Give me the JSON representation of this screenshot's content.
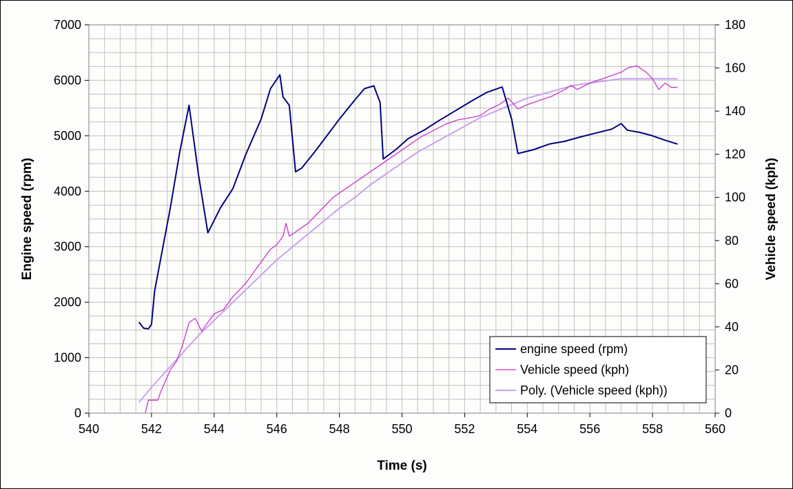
{
  "chart_data": {
    "type": "line",
    "xlabel": "Time (s)",
    "ylabel_left": "Engine speed (rpm)",
    "ylabel_right": "Vehicle speed (kph)",
    "xlim": [
      540,
      560
    ],
    "ylim_left": [
      0,
      7000
    ],
    "ylim_right": [
      0,
      180
    ],
    "x_ticks": [
      "540",
      "542",
      "544",
      "546",
      "548",
      "550",
      "552",
      "554",
      "556",
      "558",
      "560"
    ],
    "y_left_ticks": [
      "0",
      "1000",
      "2000",
      "3000",
      "4000",
      "5000",
      "6000",
      "7000"
    ],
    "y_right_ticks": [
      "0",
      "20",
      "40",
      "60",
      "80",
      "100",
      "120",
      "140",
      "160",
      "180"
    ],
    "grid": true,
    "legend_position": "bottom-right",
    "colors": {
      "engine": "#000080",
      "vehicle": "#cc33cc",
      "poly": "#c9a0f0"
    },
    "series": [
      {
        "name": "engine speed (rpm)",
        "axis": "left",
        "x": [
          541.6,
          541.75,
          541.9,
          542.0,
          542.1,
          542.3,
          542.6,
          542.9,
          543.2,
          543.5,
          543.8,
          544.2,
          544.6,
          545.0,
          545.5,
          545.8,
          546.1,
          546.2,
          546.4,
          546.6,
          546.8,
          547.2,
          547.6,
          548.0,
          548.5,
          548.8,
          549.1,
          549.3,
          549.4,
          549.8,
          550.2,
          550.7,
          551.2,
          551.7,
          552.2,
          552.7,
          553.2,
          553.5,
          553.7,
          554.2,
          554.7,
          555.2,
          555.7,
          556.2,
          556.7,
          557.0,
          557.2,
          557.6,
          558.0,
          558.4,
          558.8
        ],
        "values": [
          1640,
          1530,
          1520,
          1600,
          2200,
          2800,
          3700,
          4700,
          5550,
          4300,
          3250,
          3700,
          4050,
          4650,
          5300,
          5850,
          6100,
          5700,
          5550,
          4350,
          4420,
          4700,
          5000,
          5300,
          5650,
          5850,
          5900,
          5600,
          4580,
          4750,
          4950,
          5100,
          5280,
          5450,
          5620,
          5780,
          5880,
          5300,
          4680,
          4750,
          4850,
          4900,
          4980,
          5050,
          5120,
          5220,
          5100,
          5060,
          5000,
          4920,
          4850
        ]
      },
      {
        "name": "Vehicle speed (kph)",
        "axis": "right",
        "x": [
          541.8,
          541.9,
          542.2,
          542.3,
          542.6,
          542.8,
          543.0,
          543.2,
          543.4,
          543.6,
          543.8,
          544.0,
          544.3,
          544.6,
          545.0,
          545.4,
          545.8,
          546.0,
          546.2,
          546.3,
          546.4,
          546.6,
          547.0,
          547.4,
          547.8,
          548.2,
          548.6,
          549.0,
          549.4,
          549.8,
          550.2,
          550.6,
          551.0,
          551.4,
          551.8,
          552.2,
          552.5,
          552.8,
          553.1,
          553.4,
          553.7,
          554.0,
          554.4,
          554.8,
          555.2,
          555.4,
          555.6,
          556.0,
          556.4,
          556.8,
          557.0,
          557.2,
          557.5,
          557.8,
          558.0,
          558.2,
          558.4,
          558.6,
          558.8
        ],
        "values": [
          0,
          6,
          6,
          10,
          20,
          24,
          32,
          42,
          44,
          38,
          42,
          46,
          48,
          54,
          60,
          68,
          76,
          78,
          82,
          88,
          82,
          84,
          88,
          94,
          100,
          104,
          108,
          112,
          116,
          120,
          124,
          128,
          131,
          134,
          136,
          137,
          138,
          141,
          143,
          146,
          141,
          143,
          145,
          147,
          150,
          152,
          150,
          153,
          155,
          157,
          158,
          160,
          161,
          158,
          155,
          150,
          153,
          151,
          151
        ]
      },
      {
        "name": "Poly. (Vehicle speed (kph))",
        "axis": "right",
        "x": [
          541.6,
          542.0,
          542.5,
          543.0,
          543.5,
          544.0,
          544.5,
          545.0,
          545.5,
          546.0,
          546.5,
          547.0,
          547.5,
          548.0,
          548.5,
          549.0,
          549.5,
          550.0,
          550.5,
          551.0,
          551.5,
          552.0,
          552.5,
          553.0,
          553.5,
          554.0,
          554.5,
          555.0,
          555.5,
          556.0,
          556.5,
          557.0,
          557.5,
          558.0,
          558.8
        ],
        "values": [
          5,
          12,
          20,
          28,
          36,
          43,
          50,
          57,
          64,
          71,
          77,
          83,
          89,
          95,
          100,
          106,
          111,
          116,
          121,
          125,
          129,
          133,
          137,
          140,
          143,
          146,
          148,
          150,
          152,
          153,
          154,
          155,
          155,
          155,
          155
        ]
      }
    ]
  }
}
